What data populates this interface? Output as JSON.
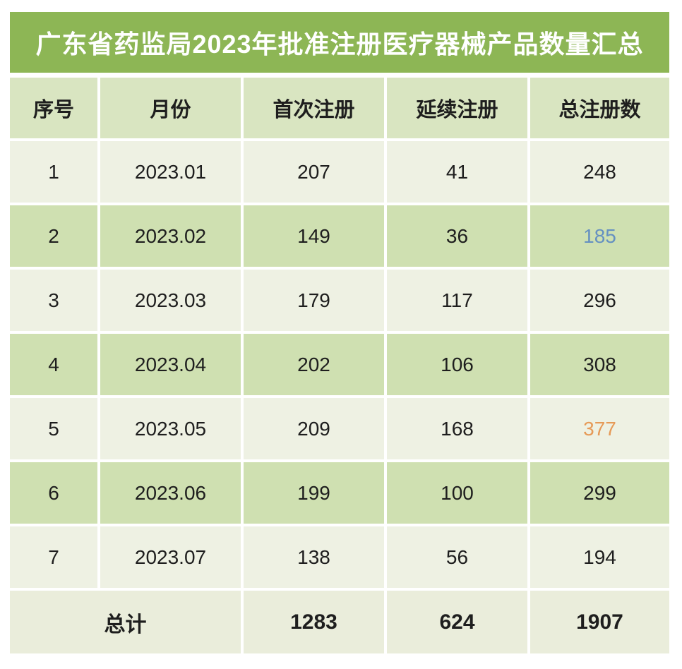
{
  "title": "广东省药监局2023年批准注册医疗器械产品数量汇总",
  "colors": {
    "title_bg": "#8db655",
    "title_text": "#ffffff",
    "header_bg": "#d9e5c1",
    "row_odd_bg": "#eef1e3",
    "row_even_bg": "#cfe0b1",
    "total_row_bg": "#eaeddb",
    "text": "#1e1e1e",
    "highlight_blue": "#6590c1",
    "highlight_orange": "#e69a57"
  },
  "chart_data": {
    "type": "table",
    "title": "广东省药监局2023年批准注册医疗器械产品数量汇总",
    "columns": [
      "序号",
      "月份",
      "首次注册",
      "延续注册",
      "总注册数"
    ],
    "rows": [
      {
        "index": "1",
        "month": "2023.01",
        "first_reg": 207,
        "renewal_reg": 41,
        "total_reg": 248,
        "total_highlight": null
      },
      {
        "index": "2",
        "month": "2023.02",
        "first_reg": 149,
        "renewal_reg": 36,
        "total_reg": 185,
        "total_highlight": "blue"
      },
      {
        "index": "3",
        "month": "2023.03",
        "first_reg": 179,
        "renewal_reg": 117,
        "total_reg": 296,
        "total_highlight": null
      },
      {
        "index": "4",
        "month": "2023.04",
        "first_reg": 202,
        "renewal_reg": 106,
        "total_reg": 308,
        "total_highlight": null
      },
      {
        "index": "5",
        "month": "2023.05",
        "first_reg": 209,
        "renewal_reg": 168,
        "total_reg": 377,
        "total_highlight": "orange"
      },
      {
        "index": "6",
        "month": "2023.06",
        "first_reg": 199,
        "renewal_reg": 100,
        "total_reg": 299,
        "total_highlight": null
      },
      {
        "index": "7",
        "month": "2023.07",
        "first_reg": 138,
        "renewal_reg": 56,
        "total_reg": 194,
        "total_highlight": null
      }
    ],
    "totals": {
      "label": "总计",
      "first_reg": 1283,
      "renewal_reg": 624,
      "total_reg": 1907
    }
  }
}
